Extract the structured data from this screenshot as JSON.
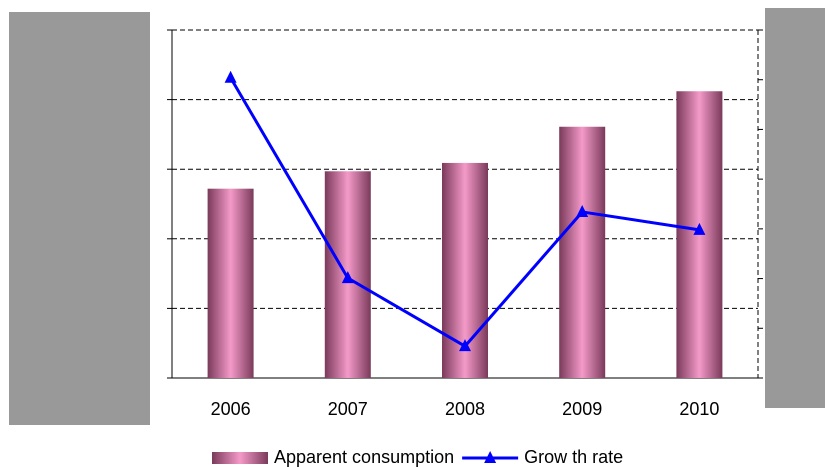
{
  "chart_data": {
    "type": "bar_line",
    "categories": [
      "2006",
      "2007",
      "2008",
      "2009",
      "2010"
    ],
    "series": [
      {
        "name": "Apparent consumption",
        "type": "bar",
        "color": "#f49ac9",
        "values": [
          2.72,
          2.97,
          3.09,
          3.61,
          4.12
        ]
      },
      {
        "name": "Grow th rate",
        "type": "line",
        "axis": "y2",
        "color": "#0000ff",
        "values": [
          6.04,
          2.01,
          0.64,
          3.34,
          2.98
        ]
      }
    ],
    "ylim": [
      0,
      5
    ],
    "yticks": [
      0,
      1,
      2,
      3,
      4,
      5
    ],
    "y2lim": [
      0,
      7
    ],
    "y2ticks": [
      0,
      1,
      2,
      3,
      4,
      5,
      6,
      7
    ],
    "grid": true,
    "legend": "bottom"
  }
}
